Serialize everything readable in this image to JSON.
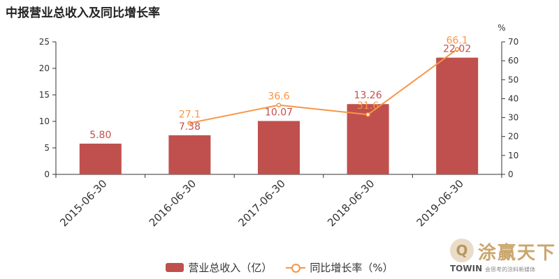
{
  "title": "中报营业总收入及同比增长率",
  "chart_data": {
    "type": "bar",
    "categories": [
      "2015-06-30",
      "2016-06-30",
      "2017-06-30",
      "2018-06-30",
      "2019-06-30"
    ],
    "series": [
      {
        "name": "营业总收入（亿）",
        "type": "bar",
        "axis": "left",
        "values": [
          5.8,
          7.38,
          10.07,
          13.26,
          22.02
        ],
        "labels": [
          "5.80",
          "7.38",
          "10.07",
          "13.26",
          "22.02"
        ],
        "color": "#c0504d"
      },
      {
        "name": "同比增长率（%）",
        "type": "line",
        "axis": "right",
        "values": [
          null,
          27.1,
          36.6,
          31.6,
          66.1
        ],
        "labels": [
          "",
          "27.1",
          "36.6",
          "31.6",
          "66.1"
        ],
        "color": "#f79646"
      }
    ],
    "y_left": {
      "min": 0,
      "max": 25,
      "ticks": [
        "0",
        "5",
        "10",
        "15",
        "20",
        "25"
      ]
    },
    "y_right": {
      "min": 0,
      "max": 70,
      "ticks": [
        "0",
        "10",
        "20",
        "30",
        "40",
        "50",
        "60",
        "70"
      ],
      "unit": "%"
    },
    "grid": false,
    "legend": "bottom-center"
  },
  "watermark": {
    "glyph": "Q",
    "text_cn": "涂赢天下",
    "text_en": "TOWIN",
    "tagline": "会思考的涂料新媒体"
  }
}
